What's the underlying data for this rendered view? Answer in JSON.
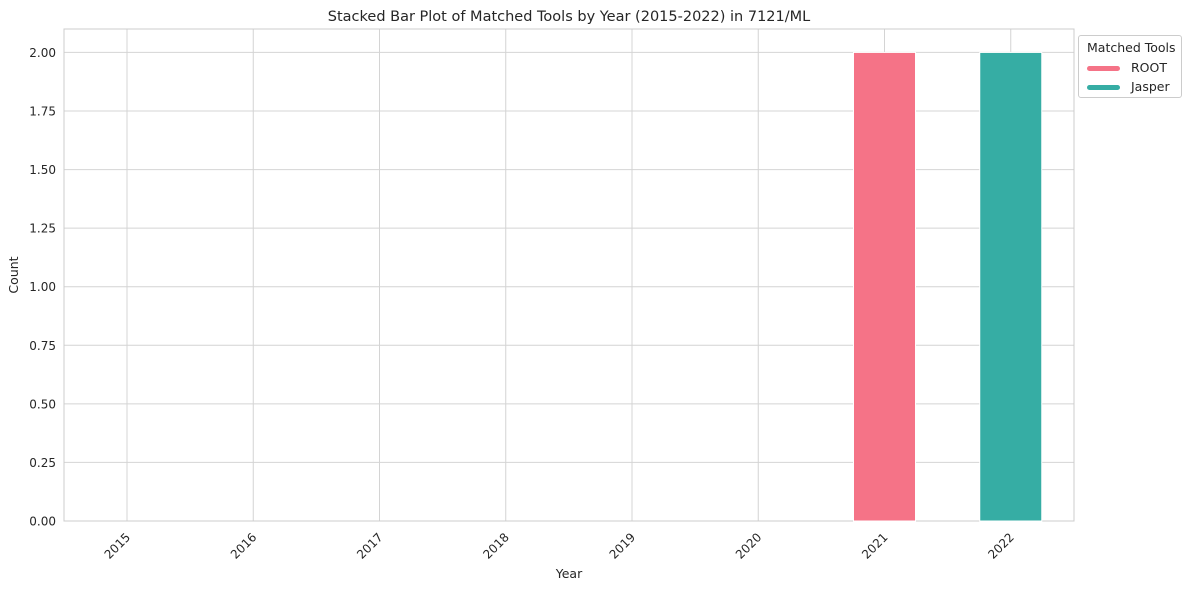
{
  "chart_data": {
    "type": "bar",
    "stacked": true,
    "title": "Stacked Bar Plot of Matched Tools by Year (2015-2022) in 7121/ML",
    "xlabel": "Year",
    "ylabel": "Count",
    "categories": [
      "2015",
      "2016",
      "2017",
      "2018",
      "2019",
      "2020",
      "2021",
      "2022"
    ],
    "series": [
      {
        "name": "ROOT",
        "values": [
          0,
          0,
          0,
          0,
          0,
          0,
          2,
          0
        ],
        "color": "#f57387"
      },
      {
        "name": "Jasper",
        "values": [
          0,
          0,
          0,
          0,
          0,
          0,
          0,
          2
        ],
        "color": "#36ada4"
      }
    ],
    "ylim": [
      0,
      2.1
    ],
    "yticks": [
      "0.00",
      "0.25",
      "0.50",
      "0.75",
      "1.00",
      "1.25",
      "1.50",
      "1.75",
      "2.00"
    ],
    "grid": true,
    "legend": {
      "title": "Matched Tools",
      "placement": "outside-top-right"
    }
  }
}
